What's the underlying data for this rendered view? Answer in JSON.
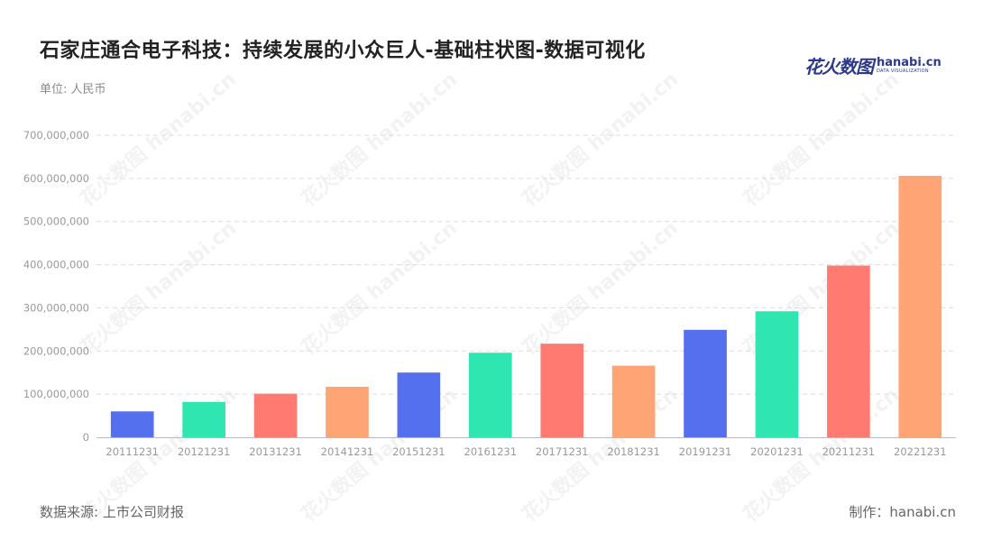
{
  "header": {
    "title": "石家庄通合电子科技：持续发展的小众巨人-基础柱状图-数据可视化",
    "unit": "单位: 人民币"
  },
  "logo": {
    "cn": "花火数图",
    "en": "hanabi.cn",
    "en_sub": "DATA VISUALIZATION"
  },
  "footer": {
    "source": "数据来源: 上市公司财报",
    "maker": "制作：hanabi.cn"
  },
  "chart_data": {
    "type": "bar",
    "categories": [
      "20111231",
      "20121231",
      "20131231",
      "20141231",
      "20151231",
      "20161231",
      "20171231",
      "20181231",
      "20191231",
      "20201231",
      "20211231",
      "20221231"
    ],
    "values": [
      60000000,
      82000000,
      101000000,
      117000000,
      150000000,
      196000000,
      217000000,
      166000000,
      249000000,
      292000000,
      398000000,
      606000000
    ],
    "ylim": [
      0,
      700000000
    ],
    "yticks": [
      "0",
      "100,000,000",
      "200,000,000",
      "300,000,000",
      "400,000,000",
      "500,000,000",
      "600,000,000",
      "700,000,000"
    ],
    "grid": true,
    "palette": [
      "#5470ee",
      "#2fe6b0",
      "#ff7b72",
      "#ffa474"
    ],
    "watermark": "花火数图 hanabi.cn"
  }
}
